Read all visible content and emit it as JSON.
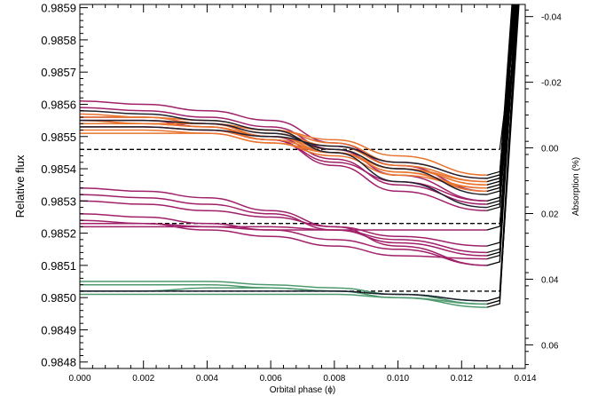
{
  "chart_data": {
    "type": "line",
    "xlabel": "Orbital phase (ϕ)",
    "ylabel": "Relative flux",
    "y2label": "Absorption (%)",
    "xlim": [
      0.0,
      0.014
    ],
    "ylim": [
      0.98478,
      0.98591
    ],
    "y2lim": [
      0.0672,
      -0.0437
    ],
    "x_ticks": [
      0.0,
      0.002,
      0.004,
      0.006,
      0.008,
      0.01,
      0.012,
      0.014
    ],
    "x_tick_labels": [
      "0.000",
      "0.002",
      "0.004",
      "0.006",
      "0.008",
      "0.010",
      "0.012",
      "0.014"
    ],
    "y_ticks": [
      0.9848,
      0.9849,
      0.985,
      0.9851,
      0.9852,
      0.9853,
      0.9854,
      0.9855,
      0.9856,
      0.9857,
      0.9858,
      0.9859
    ],
    "y_tick_labels": [
      "0.9848",
      "0.9849",
      "0.9850",
      "0.9851",
      "0.9852",
      "0.9853",
      "0.9854",
      "0.9855",
      "0.9856",
      "0.9857",
      "0.9858",
      "0.9859"
    ],
    "y2_ticks": [
      0.06,
      0.04,
      0.02,
      0.0,
      -0.02,
      -0.04
    ],
    "y2_tick_labels": [
      "0.06",
      "0.04",
      "0.02",
      "0.00",
      "-0.02",
      "-0.04"
    ],
    "reference_lines": [
      {
        "x_start": 0.0,
        "x_end": 0.0132,
        "y": 0.98546
      },
      {
        "x_start": 0.0,
        "x_end": 0.0132,
        "y": 0.98523
      },
      {
        "x_start": 0.0,
        "x_end": 0.0132,
        "y": 0.98502
      }
    ],
    "ingress": {
      "x_start": 0.0132,
      "x_end": 0.01375,
      "y_end": 0.98595
    },
    "colors": {
      "orange": "#e8742e",
      "purple": "#a0206a",
      "green": "#4e9a6e",
      "black": "#202030",
      "dashed": "#000000"
    },
    "series": [
      {
        "color": "orange",
        "values": [
          0.98556,
          0.98556,
          0.98555,
          0.98552,
          0.98548,
          0.98542,
          0.98537
        ]
      },
      {
        "color": "orange",
        "values": [
          0.98555,
          0.98555,
          0.98554,
          0.98551,
          0.98547,
          0.98541,
          0.98536
        ]
      },
      {
        "color": "orange",
        "values": [
          0.98554,
          0.98554,
          0.98553,
          0.9855,
          0.98546,
          0.9854,
          0.98535
        ]
      },
      {
        "color": "orange",
        "values": [
          0.98553,
          0.98553,
          0.98552,
          0.98549,
          0.98545,
          0.98539,
          0.98534
        ]
      },
      {
        "color": "orange",
        "values": [
          0.98557,
          0.98556,
          0.98554,
          0.9855,
          0.98545,
          0.98539,
          0.98533
        ]
      },
      {
        "color": "orange",
        "values": [
          0.98552,
          0.98552,
          0.98551,
          0.98548,
          0.98544,
          0.98538,
          0.98534
        ]
      },
      {
        "color": "orange",
        "values": [
          0.98554,
          0.98554,
          0.98554,
          0.98552,
          0.98549,
          0.98544,
          0.98538
        ]
      },
      {
        "color": "orange",
        "values": [
          0.98551,
          0.98551,
          0.98551,
          0.98548,
          0.98545,
          0.9854,
          0.98535
        ]
      },
      {
        "color": "orange",
        "values": [
          0.98555,
          0.98554,
          0.98553,
          0.98549,
          0.98545,
          0.9854,
          0.98536
        ]
      },
      {
        "color": "purple",
        "values": [
          0.98561,
          0.9856,
          0.98558,
          0.98555,
          0.98548,
          0.98541,
          0.98533
        ]
      },
      {
        "color": "purple",
        "values": [
          0.98559,
          0.98558,
          0.98556,
          0.98553,
          0.98546,
          0.98538,
          0.9853
        ]
      },
      {
        "color": "purple",
        "values": [
          0.98556,
          0.98556,
          0.98554,
          0.9855,
          0.98543,
          0.98535,
          0.98529
        ]
      },
      {
        "color": "purple",
        "values": [
          0.98555,
          0.98555,
          0.98553,
          0.98549,
          0.98541,
          0.98533,
          0.98527
        ]
      },
      {
        "color": "purple",
        "values": [
          0.98553,
          0.98553,
          0.98552,
          0.98549,
          0.98542,
          0.98536,
          0.9853
        ]
      },
      {
        "color": "purple",
        "values": [
          0.98534,
          0.98533,
          0.98531,
          0.98527,
          0.98522,
          0.98516,
          0.9851
        ]
      },
      {
        "color": "purple",
        "values": [
          0.98532,
          0.98531,
          0.98529,
          0.98526,
          0.98521,
          0.98517,
          0.98513
        ]
      },
      {
        "color": "purple",
        "values": [
          0.9853,
          0.98529,
          0.98527,
          0.98525,
          0.98522,
          0.98519,
          0.98516
        ]
      },
      {
        "color": "purple",
        "values": [
          0.98526,
          0.98525,
          0.98523,
          0.98521,
          0.98518,
          0.98515,
          0.9851
        ]
      },
      {
        "color": "purple",
        "values": [
          0.98524,
          0.98523,
          0.98521,
          0.98519,
          0.98516,
          0.98513,
          0.98512
        ]
      },
      {
        "color": "purple",
        "values": [
          0.98522,
          0.98522,
          0.98522,
          0.98522,
          0.98521,
          0.98518,
          0.98514
        ]
      },
      {
        "color": "purple",
        "values": [
          0.98523,
          0.98523,
          0.98522,
          0.98521,
          0.98521,
          0.98521,
          0.98521
        ]
      },
      {
        "color": "green",
        "values": [
          0.98505,
          0.98505,
          0.98505,
          0.98504,
          0.98503,
          0.98501,
          0.98498
        ]
      },
      {
        "color": "green",
        "values": [
          0.98504,
          0.98504,
          0.98504,
          0.98503,
          0.98502,
          0.985,
          0.98497
        ]
      },
      {
        "color": "green",
        "values": [
          0.98502,
          0.98502,
          0.98503,
          0.98503,
          0.98502,
          0.98501,
          0.98499
        ]
      },
      {
        "color": "green",
        "values": [
          0.98501,
          0.98501,
          0.98501,
          0.98501,
          0.98501,
          0.985,
          0.98498
        ]
      },
      {
        "color": "black",
        "values": [
          0.98558,
          0.98557,
          0.98555,
          0.98552,
          0.98545,
          0.98536,
          0.98528
        ]
      },
      {
        "color": "black",
        "values": [
          0.98555,
          0.98555,
          0.98554,
          0.98551,
          0.98546,
          0.9854,
          0.98532
        ]
      },
      {
        "color": "black",
        "values": [
          0.98553,
          0.98553,
          0.98552,
          0.9855,
          0.98547,
          0.98542,
          0.98537
        ]
      },
      {
        "color": "black",
        "values": [
          0.98502,
          0.98502,
          0.98502,
          0.98502,
          0.98502,
          0.98501,
          0.98499
        ]
      }
    ],
    "series_x": [
      0.0,
      0.002,
      0.004,
      0.006,
      0.008,
      0.01,
      0.0128
    ]
  }
}
